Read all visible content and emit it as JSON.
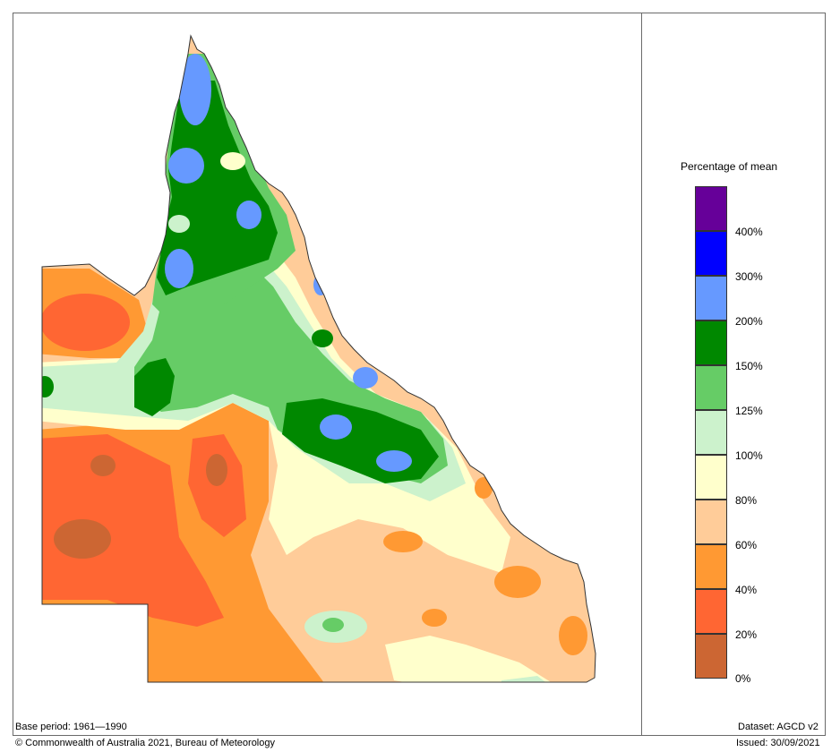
{
  "legend": {
    "title": "Percentage of mean",
    "bins": [
      {
        "color": "#660099",
        "label": "400%"
      },
      {
        "color": "#0000ff",
        "label": "300%"
      },
      {
        "color": "#6699ff",
        "label": "200%"
      },
      {
        "color": "#008800",
        "label": "150%"
      },
      {
        "color": "#66cc66",
        "label": "125%"
      },
      {
        "color": "#ccf2cc",
        "label": "100%"
      },
      {
        "color": "#ffffcc",
        "label": "80%"
      },
      {
        "color": "#ffcc99",
        "label": "60%"
      },
      {
        "color": "#ff9933",
        "label": "40%"
      },
      {
        "color": "#ff6633",
        "label": "20%"
      },
      {
        "color": "#cc6633",
        "label": "0%"
      }
    ]
  },
  "footer": {
    "base_period": "Base period: 1961—1990",
    "dataset": "Dataset: AGCD v2",
    "copyright": "© Commonwealth of Australia 2021, Bureau of Meteorology",
    "issued": "Issued: 30/09/2021"
  }
}
